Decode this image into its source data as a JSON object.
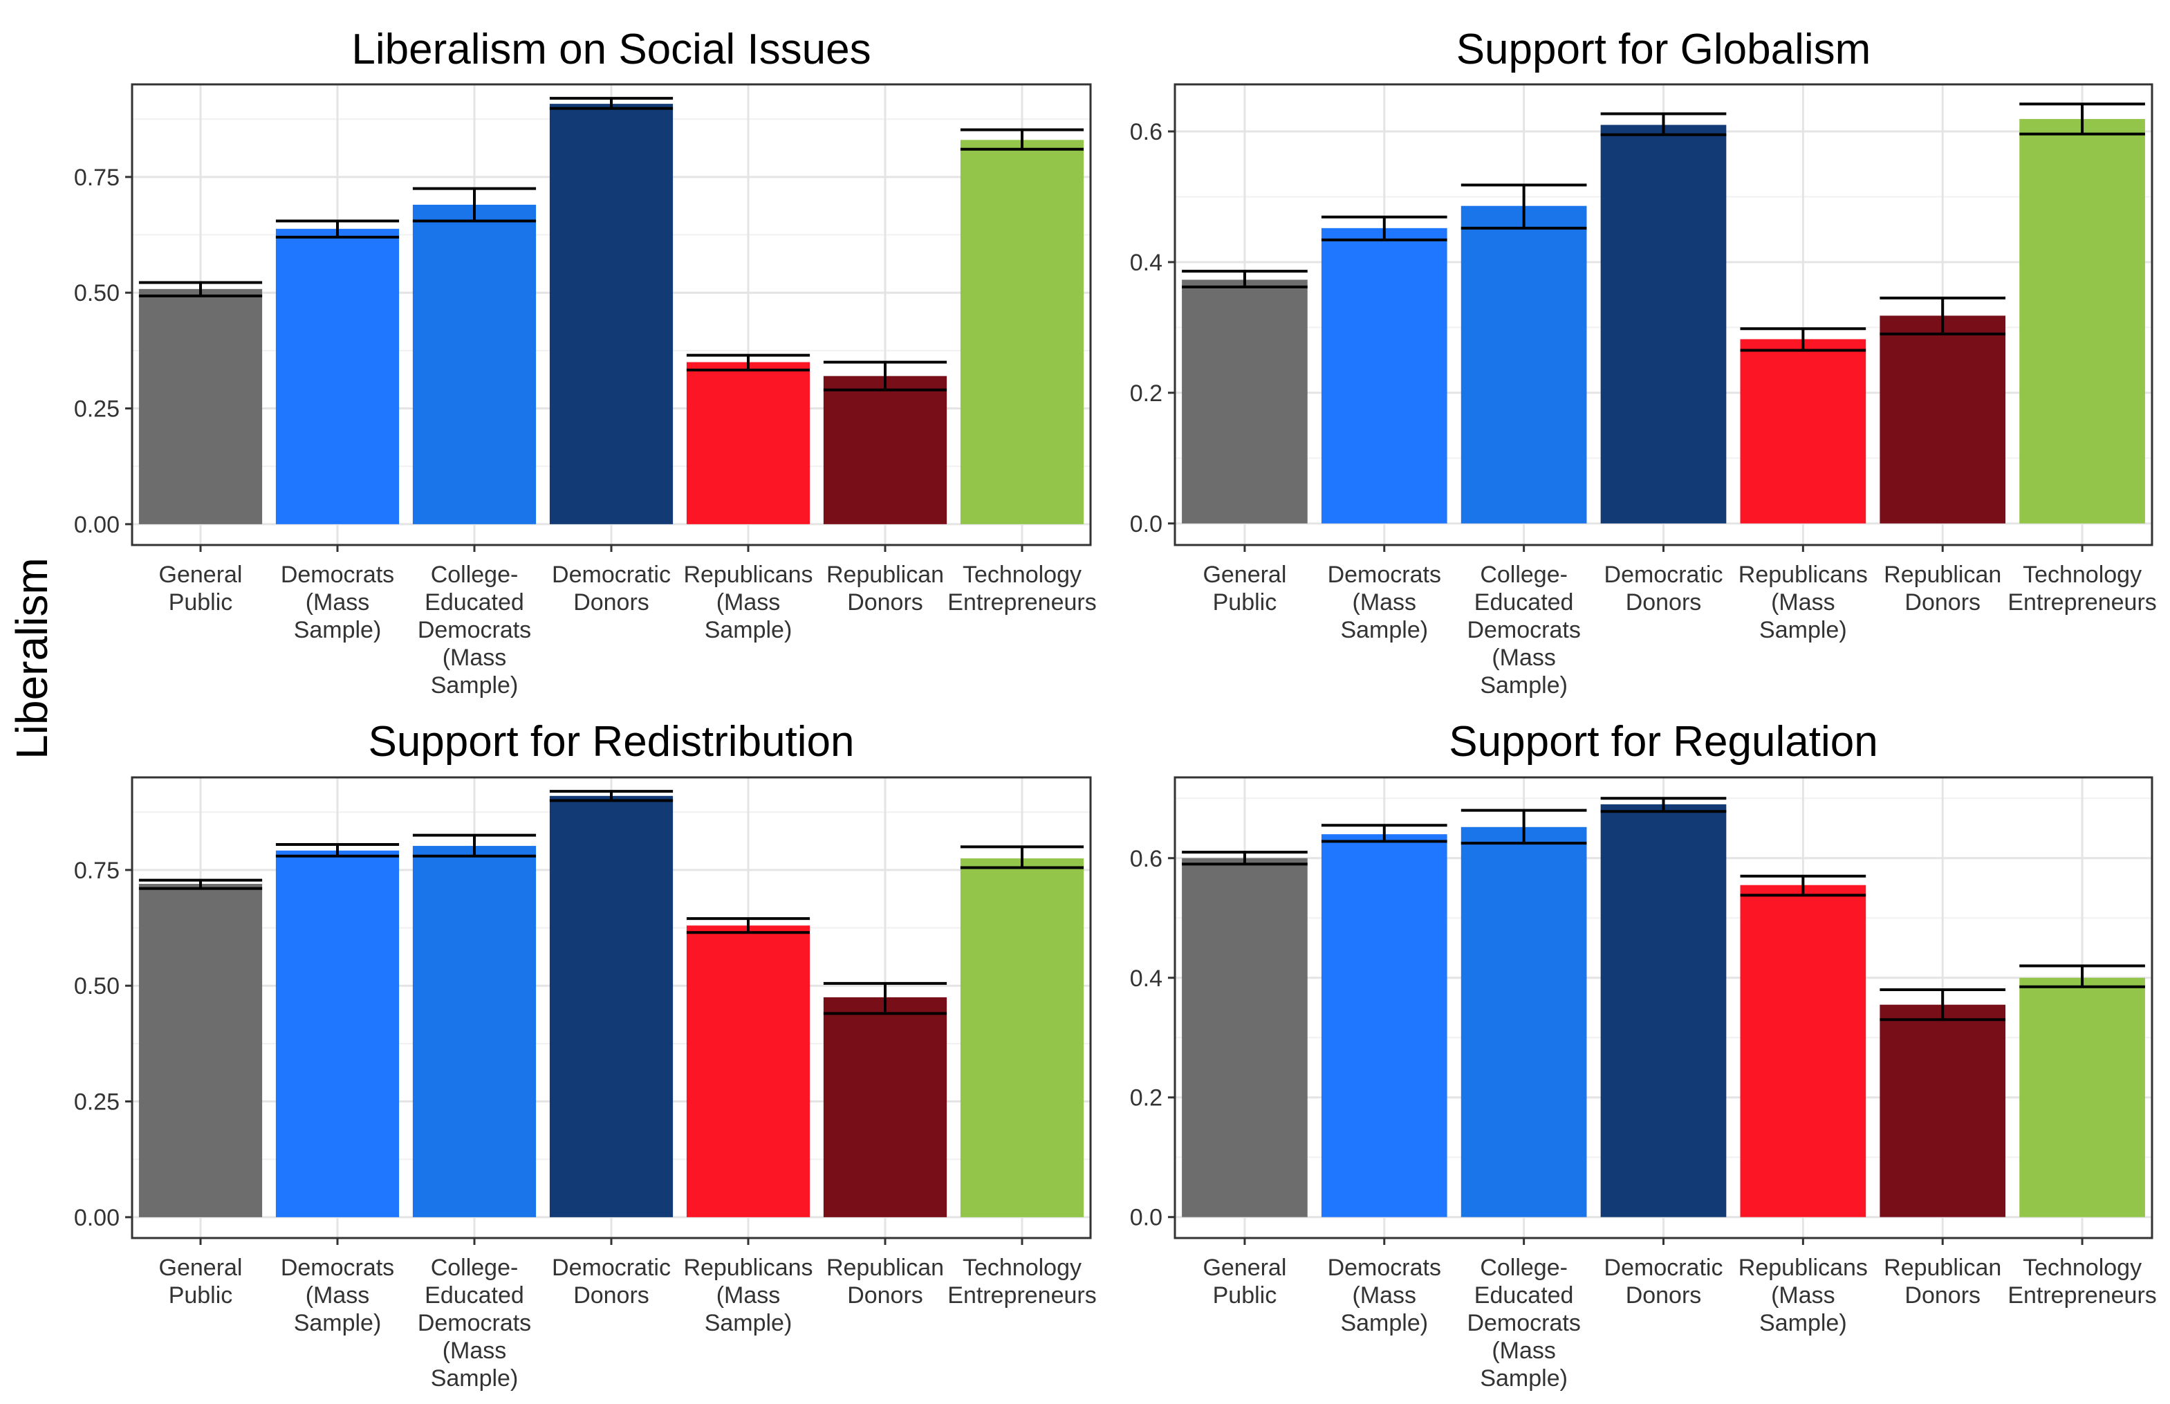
{
  "ylabel": "Liberalism",
  "chart_data": [
    {
      "type": "bar",
      "title": "Liberalism on Social Issues",
      "categories": [
        [
          "General",
          "Public"
        ],
        [
          "Democrats",
          "(Mass",
          "Sample)"
        ],
        [
          "College-",
          "Educated",
          "Democrats",
          "(Mass",
          "Sample)"
        ],
        [
          "Democratic",
          "Donors"
        ],
        [
          "Republicans",
          "(Mass",
          "Sample)"
        ],
        [
          "Republican",
          "Donors"
        ],
        [
          "Technology",
          "Entrepreneurs"
        ]
      ],
      "values": [
        0.508,
        0.638,
        0.69,
        0.908,
        0.35,
        0.32,
        0.83
      ],
      "error_low": [
        0.493,
        0.62,
        0.655,
        0.898,
        0.333,
        0.29,
        0.81
      ],
      "error_high": [
        0.522,
        0.655,
        0.725,
        0.92,
        0.365,
        0.35,
        0.852
      ],
      "colors": [
        "#6d6d6d",
        "#1f77ff",
        "#1b75ea",
        "#123a75",
        "#fc1525",
        "#780e18",
        "#92c54a"
      ],
      "ylim": [
        -0.045,
        0.95
      ],
      "yticks": [
        0,
        0.25,
        0.5,
        0.75
      ],
      "ytick_labels": [
        "0.00",
        "0.25",
        "0.50",
        "0.75"
      ],
      "grid": true,
      "legend": "none"
    },
    {
      "type": "bar",
      "title": "Support for Globalism",
      "categories": [
        [
          "General",
          "Public"
        ],
        [
          "Democrats",
          "(Mass",
          "Sample)"
        ],
        [
          "College-",
          "Educated",
          "Democrats",
          "(Mass",
          "Sample)"
        ],
        [
          "Democratic",
          "Donors"
        ],
        [
          "Republicans",
          "(Mass",
          "Sample)"
        ],
        [
          "Republican",
          "Donors"
        ],
        [
          "Technology",
          "Entrepreneurs"
        ]
      ],
      "values": [
        0.373,
        0.452,
        0.486,
        0.61,
        0.282,
        0.318,
        0.619
      ],
      "error_low": [
        0.362,
        0.434,
        0.452,
        0.595,
        0.265,
        0.29,
        0.596
      ],
      "error_high": [
        0.386,
        0.469,
        0.518,
        0.627,
        0.298,
        0.345,
        0.642
      ],
      "colors": [
        "#6d6d6d",
        "#1f77ff",
        "#1b75ea",
        "#123a75",
        "#fc1525",
        "#780e18",
        "#92c54a"
      ],
      "ylim": [
        -0.033,
        0.672
      ],
      "yticks": [
        0,
        0.2,
        0.4,
        0.6
      ],
      "ytick_labels": [
        "0.0",
        "0.2",
        "0.4",
        "0.6"
      ],
      "grid": true,
      "legend": "none"
    },
    {
      "type": "bar",
      "title": "Support for Redistribution",
      "categories": [
        [
          "General",
          "Public"
        ],
        [
          "Democrats",
          "(Mass",
          "Sample)"
        ],
        [
          "College-",
          "Educated",
          "Democrats",
          "(Mass",
          "Sample)"
        ],
        [
          "Democratic",
          "Donors"
        ],
        [
          "Republicans",
          "(Mass",
          "Sample)"
        ],
        [
          "Republican",
          "Donors"
        ],
        [
          "Technology",
          "Entrepreneurs"
        ]
      ],
      "values": [
        0.72,
        0.792,
        0.802,
        0.91,
        0.63,
        0.475,
        0.775
      ],
      "error_low": [
        0.71,
        0.78,
        0.78,
        0.9,
        0.615,
        0.44,
        0.755
      ],
      "error_high": [
        0.728,
        0.805,
        0.825,
        0.92,
        0.645,
        0.505,
        0.8
      ],
      "colors": [
        "#6d6d6d",
        "#1f77ff",
        "#1b75ea",
        "#123a75",
        "#fc1525",
        "#780e18",
        "#92c54a"
      ],
      "ylim": [
        -0.045,
        0.95
      ],
      "yticks": [
        0,
        0.25,
        0.5,
        0.75
      ],
      "ytick_labels": [
        "0.00",
        "0.25",
        "0.50",
        "0.75"
      ],
      "grid": true,
      "legend": "none"
    },
    {
      "type": "bar",
      "title": "Support for Regulation",
      "categories": [
        [
          "General",
          "Public"
        ],
        [
          "Democrats",
          "(Mass",
          "Sample)"
        ],
        [
          "College-",
          "Educated",
          "Democrats",
          "(Mass",
          "Sample)"
        ],
        [
          "Democratic",
          "Donors"
        ],
        [
          "Republicans",
          "(Mass",
          "Sample)"
        ],
        [
          "Republican",
          "Donors"
        ],
        [
          "Technology",
          "Entrepreneurs"
        ]
      ],
      "values": [
        0.6,
        0.64,
        0.652,
        0.69,
        0.555,
        0.355,
        0.4
      ],
      "error_low": [
        0.59,
        0.628,
        0.625,
        0.678,
        0.538,
        0.33,
        0.385
      ],
      "error_high": [
        0.61,
        0.655,
        0.68,
        0.7,
        0.57,
        0.38,
        0.42
      ],
      "colors": [
        "#6d6d6d",
        "#1f77ff",
        "#1b75ea",
        "#123a75",
        "#fc1525",
        "#780e18",
        "#92c54a"
      ],
      "ylim": [
        -0.035,
        0.735
      ],
      "yticks": [
        0,
        0.2,
        0.4,
        0.6
      ],
      "ytick_labels": [
        "0.0",
        "0.2",
        "0.4",
        "0.6"
      ],
      "grid": true,
      "legend": "none"
    }
  ]
}
